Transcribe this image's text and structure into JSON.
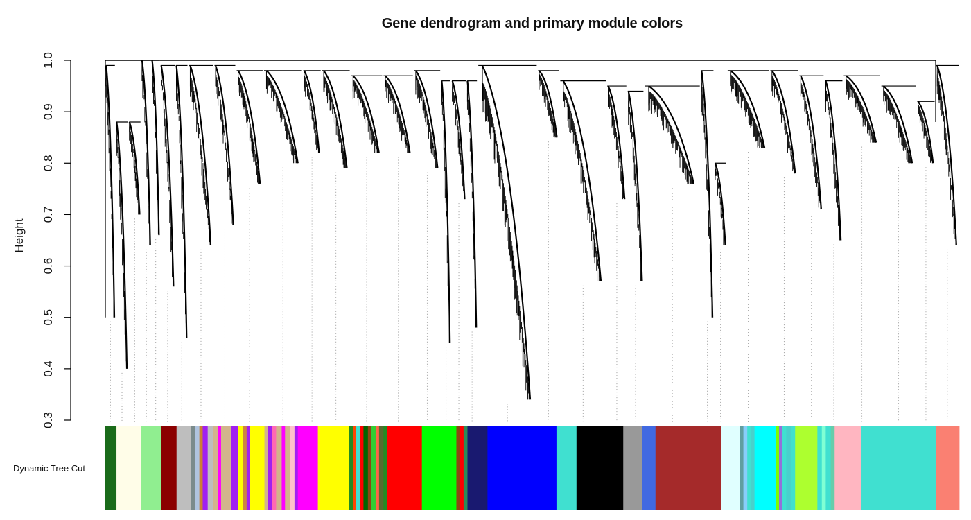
{
  "chart_data": {
    "type": "dendrogram",
    "title": "Gene dendrogram and primary module colors",
    "ylabel": "Height",
    "xlabel": "",
    "ylim": [
      0.3,
      1.0
    ],
    "yticks": [
      "0.3",
      "0.4",
      "0.5",
      "0.6",
      "0.7",
      "0.8",
      "0.9",
      "1.0"
    ],
    "color_row_label": "Dynamic Tree Cut",
    "grid": false,
    "colors": {
      "axis": "#000000",
      "branch": "#000000",
      "guide": "#9a9a9a"
    },
    "branches": [
      {
        "w": 1.2,
        "top": 0.99,
        "leaf": 0.5
      },
      {
        "w": 1.5,
        "top": 0.88,
        "leaf": 0.4
      },
      {
        "w": 1.5,
        "top": 0.88,
        "leaf": 0.7
      },
      {
        "w": 1.2,
        "top": 1.0,
        "leaf": 0.64
      },
      {
        "w": 1.0,
        "top": 1.0,
        "leaf": 0.66
      },
      {
        "w": 1.8,
        "top": 0.99,
        "leaf": 0.56
      },
      {
        "w": 1.5,
        "top": 0.99,
        "leaf": 0.46
      },
      {
        "w": 3.0,
        "top": 0.99,
        "leaf": 0.64
      },
      {
        "w": 2.6,
        "top": 0.99,
        "leaf": 0.68
      },
      {
        "w": 3.2,
        "top": 0.98,
        "leaf": 0.76
      },
      {
        "w": 4.6,
        "top": 0.98,
        "leaf": 0.8
      },
      {
        "w": 2.2,
        "top": 0.98,
        "leaf": 0.82
      },
      {
        "w": 3.4,
        "top": 0.98,
        "leaf": 0.79
      },
      {
        "w": 3.8,
        "top": 0.97,
        "leaf": 0.82
      },
      {
        "w": 3.6,
        "top": 0.97,
        "leaf": 0.82
      },
      {
        "w": 3.2,
        "top": 0.98,
        "leaf": 0.79
      },
      {
        "w": 1.2,
        "top": 0.96,
        "leaf": 0.45
      },
      {
        "w": 1.8,
        "top": 0.96,
        "leaf": 0.73
      },
      {
        "w": 1.3,
        "top": 0.96,
        "leaf": 0.48
      },
      {
        "w": 7.0,
        "top": 0.99,
        "leaf": 0.34
      },
      {
        "w": 2.6,
        "top": 0.98,
        "leaf": 0.85
      },
      {
        "w": 5.5,
        "top": 0.96,
        "leaf": 0.57
      },
      {
        "w": 2.4,
        "top": 0.95,
        "leaf": 0.73
      },
      {
        "w": 2.0,
        "top": 0.94,
        "leaf": 0.57
      },
      {
        "w": 6.6,
        "top": 0.95,
        "leaf": 0.76
      },
      {
        "w": 1.6,
        "top": 0.98,
        "leaf": 0.5
      },
      {
        "w": 1.5,
        "top": 0.8,
        "leaf": 0.64
      },
      {
        "w": 5.0,
        "top": 0.98,
        "leaf": 0.83
      },
      {
        "w": 3.4,
        "top": 0.98,
        "leaf": 0.78
      },
      {
        "w": 3.0,
        "top": 0.97,
        "leaf": 0.71
      },
      {
        "w": 2.2,
        "top": 0.96,
        "leaf": 0.65
      },
      {
        "w": 4.4,
        "top": 0.97,
        "leaf": 0.84
      },
      {
        "w": 4.2,
        "top": 0.95,
        "leaf": 0.8
      },
      {
        "w": 2.2,
        "top": 0.92,
        "leaf": 0.8
      },
      {
        "w": 2.8,
        "top": 0.99,
        "leaf": 0.64
      }
    ],
    "modules": [
      {
        "color": "#1a6b1a",
        "w": 1.0
      },
      {
        "color": "#fffde8",
        "w": 2.2
      },
      {
        "color": "#90ee90",
        "w": 1.8
      },
      {
        "color": "#8b0000",
        "w": 1.4
      },
      {
        "color": "#bebebe",
        "w": 1.3
      },
      {
        "color": "#7b8b8b",
        "w": 0.35
      },
      {
        "color": "#b0c4de",
        "w": 0.4
      },
      {
        "color": "#cd7f32",
        "w": 0.3
      },
      {
        "color": "#a020f0",
        "w": 0.45
      },
      {
        "color": "#bebebe",
        "w": 0.5
      },
      {
        "color": "#d2b48c",
        "w": 0.4
      },
      {
        "color": "#ff00ff",
        "w": 0.3
      },
      {
        "color": "#d2b48c",
        "w": 0.9
      },
      {
        "color": "#a020f0",
        "w": 0.6
      },
      {
        "color": "#ffff00",
        "w": 0.45
      },
      {
        "color": "#cd853f",
        "w": 0.35
      },
      {
        "color": "#a020f0",
        "w": 0.3
      },
      {
        "color": "#ffff00",
        "w": 1.3
      },
      {
        "color": "#d2b48c",
        "w": 0.3
      },
      {
        "color": "#a020f0",
        "w": 0.4
      },
      {
        "color": "#ff69b4",
        "w": 0.35
      },
      {
        "color": "#d2b48c",
        "w": 0.5
      },
      {
        "color": "#ff00ff",
        "w": 0.3
      },
      {
        "color": "#d2b48c",
        "w": 0.45
      },
      {
        "color": "#ffc0cb",
        "w": 0.4
      },
      {
        "color": "#a020f0",
        "w": 0.3
      },
      {
        "color": "#ff00ff",
        "w": 1.8
      },
      {
        "color": "#ffff00",
        "w": 2.8
      },
      {
        "color": "#228b22",
        "w": 0.35
      },
      {
        "color": "#ff4500",
        "w": 0.3
      },
      {
        "color": "#40e0d0",
        "w": 0.35
      },
      {
        "color": "#ff0000",
        "w": 0.3
      },
      {
        "color": "#006400",
        "w": 0.4
      },
      {
        "color": "#8b4513",
        "w": 0.3
      },
      {
        "color": "#32cd32",
        "w": 0.4
      },
      {
        "color": "#ff6347",
        "w": 0.3
      },
      {
        "color": "#556b2f",
        "w": 0.4
      },
      {
        "color": "#228b22",
        "w": 0.35
      },
      {
        "color": "#ff0000",
        "w": 3.1
      },
      {
        "color": "#00ff00",
        "w": 3.1
      },
      {
        "color": "#8b4513",
        "w": 0.3
      },
      {
        "color": "#ff0000",
        "w": 0.35
      },
      {
        "color": "#2e8b57",
        "w": 0.35
      },
      {
        "color": "#191970",
        "w": 1.8
      },
      {
        "color": "#0000ff",
        "w": 6.2
      },
      {
        "color": "#40e0d0",
        "w": 1.8
      },
      {
        "color": "#000000",
        "w": 4.2
      },
      {
        "color": "#999999",
        "w": 1.7
      },
      {
        "color": "#4169e1",
        "w": 1.2
      },
      {
        "color": "#a52a2a",
        "w": 5.9
      },
      {
        "color": "#e0ffff",
        "w": 1.7
      },
      {
        "color": "#5f9ea0",
        "w": 0.3
      },
      {
        "color": "#87cefa",
        "w": 0.35
      },
      {
        "color": "#40e0d0",
        "w": 0.3
      },
      {
        "color": "#48d1cc",
        "w": 0.35
      },
      {
        "color": "#00ffff",
        "w": 1.9
      },
      {
        "color": "#7cfc00",
        "w": 0.3
      },
      {
        "color": "#9370db",
        "w": 0.3
      },
      {
        "color": "#40e0d0",
        "w": 0.35
      },
      {
        "color": "#48d1cc",
        "w": 0.4
      },
      {
        "color": "#40e0d0",
        "w": 0.4
      },
      {
        "color": "#adff2f",
        "w": 2.0
      },
      {
        "color": "#40e0d0",
        "w": 0.4
      },
      {
        "color": "#7fffd4",
        "w": 0.35
      },
      {
        "color": "#40e0d0",
        "w": 0.45
      },
      {
        "color": "#66cdaa",
        "w": 0.35
      },
      {
        "color": "#ffb6c1",
        "w": 2.4
      },
      {
        "color": "#40e0d0",
        "w": 6.7
      },
      {
        "color": "#fa8072",
        "w": 2.1
      }
    ]
  }
}
